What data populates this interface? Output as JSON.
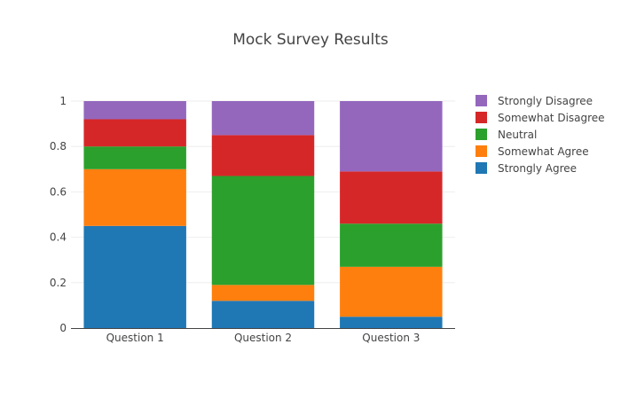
{
  "chart_data": {
    "type": "bar",
    "stacked": true,
    "title": "Mock Survey Results",
    "xlabel": "",
    "ylabel": "",
    "ylim": [
      0,
      1
    ],
    "yticks": [
      0,
      0.2,
      0.4,
      0.6,
      0.8,
      1
    ],
    "ytick_labels": [
      "0",
      "0.2",
      "0.4",
      "0.6",
      "0.8",
      "1"
    ],
    "grid": true,
    "legend_position": "right",
    "categories": [
      "Question 1",
      "Question 2",
      "Question 3"
    ],
    "series": [
      {
        "name": "Strongly Agree",
        "color": "#1f77b4",
        "values": [
          0.45,
          0.12,
          0.05
        ]
      },
      {
        "name": "Somewhat Agree",
        "color": "#ff7f0e",
        "values": [
          0.25,
          0.07,
          0.22
        ]
      },
      {
        "name": "Neutral",
        "color": "#2ca02c",
        "values": [
          0.1,
          0.48,
          0.19
        ]
      },
      {
        "name": "Somewhat Disagree",
        "color": "#d62728",
        "values": [
          0.12,
          0.18,
          0.23
        ]
      },
      {
        "name": "Strongly Disagree",
        "color": "#9467bd",
        "values": [
          0.08,
          0.15,
          0.31
        ]
      }
    ],
    "legend_order": [
      "Strongly Disagree",
      "Somewhat Disagree",
      "Neutral",
      "Somewhat Agree",
      "Strongly Agree"
    ]
  }
}
